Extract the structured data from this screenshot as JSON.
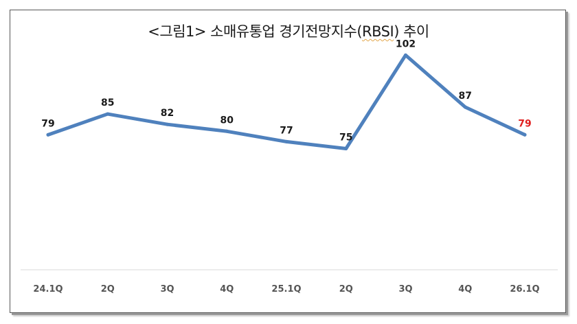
{
  "chart_data": {
    "type": "line",
    "title_prefix": "<그림1> 소매유통업 경기전망지수(",
    "title_abbr": "RBSI",
    "title_suffix": ") 추이",
    "categories": [
      "24.1Q",
      "2Q",
      "3Q",
      "4Q",
      "25.1Q",
      "2Q",
      "3Q",
      "4Q",
      "26.1Q"
    ],
    "series": [
      {
        "values": [
          79,
          85,
          82,
          80,
          77,
          75,
          102,
          87,
          79
        ],
        "color": "#4f81bd"
      }
    ],
    "data_labels": [
      "79",
      "85",
      "82",
      "80",
      "77",
      "75",
      "102",
      "87",
      "79"
    ],
    "highlight_index": 8,
    "highlight_color": "#e02020",
    "label_color": "#1a1a1a",
    "axis_color": "#d9d9d9",
    "grid": false,
    "legend": "none",
    "y_axis_visible": false,
    "ylim": [
      40,
      110
    ]
  }
}
